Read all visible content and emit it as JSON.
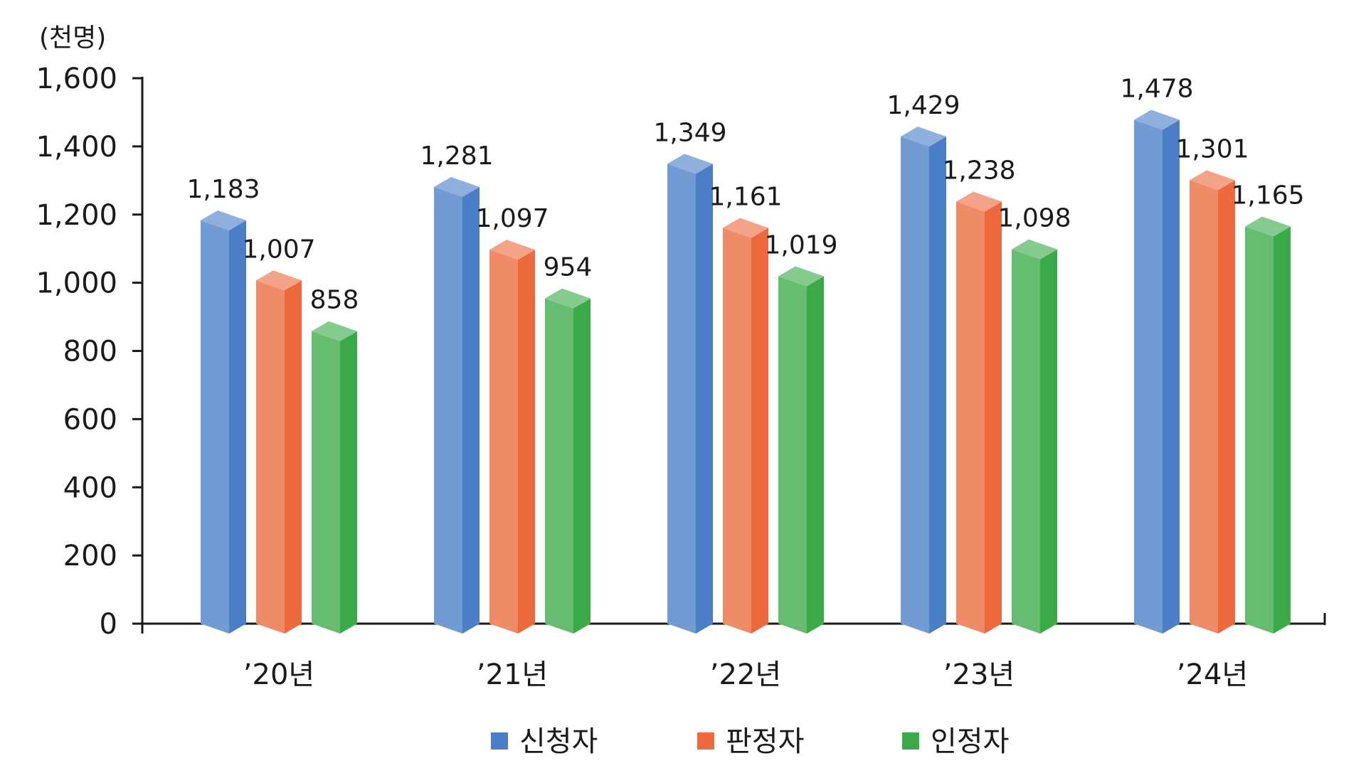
{
  "chart_data": {
    "type": "bar",
    "unit_label": "(천명)",
    "categories": [
      "’20년",
      "’21년",
      "’22년",
      "’23년",
      "’24년"
    ],
    "series": [
      {
        "name": "신청자",
        "color": "#4a7fc8",
        "values": [
          1183,
          1281,
          1349,
          1429,
          1478
        ]
      },
      {
        "name": "판정자",
        "color": "#ec6a3e",
        "values": [
          1007,
          1097,
          1161,
          1238,
          1301
        ]
      },
      {
        "name": "인정자",
        "color": "#3bab4a",
        "values": [
          858,
          954,
          1019,
          1098,
          1165
        ]
      }
    ],
    "ylim": [
      0,
      1600
    ],
    "yticks": [
      0,
      200,
      400,
      600,
      800,
      1000,
      1200,
      1400,
      1600
    ],
    "grid": false,
    "legend": "bottom-center"
  }
}
